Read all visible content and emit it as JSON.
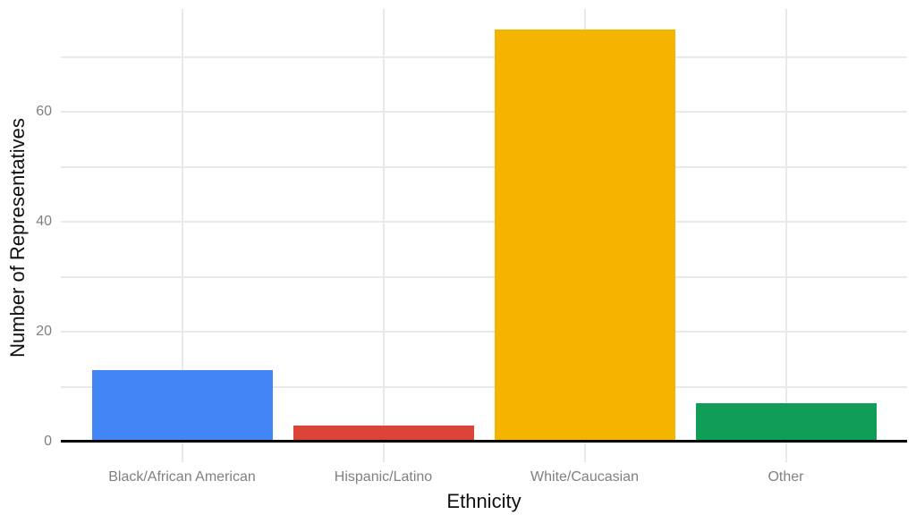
{
  "chart_data": {
    "type": "bar",
    "title": "",
    "xlabel": "Ethnicity",
    "ylabel": "Number of Representatives",
    "categories": [
      "Black/African American",
      "Hispanic/Latino",
      "White/Caucasian",
      "Other"
    ],
    "values": [
      13,
      3,
      75,
      7
    ],
    "bar_colors": [
      "#4285F4",
      "#DB4437",
      "#F4B400",
      "#0F9D58"
    ],
    "ytick_values": [
      0,
      20,
      40,
      60
    ],
    "ytick_labels": [
      "0",
      "20",
      "40",
      "60"
    ],
    "gridline_values": [
      10,
      20,
      30,
      40,
      50,
      60,
      70
    ],
    "ylim": [
      -3.75,
      78.75
    ],
    "grid": "both",
    "legend": "none",
    "colors": {
      "background": "#ffffff",
      "grid": "#e9e9e9",
      "axis_line": "#000000",
      "tick_label": "#808080",
      "axis_title": "#111111"
    }
  }
}
